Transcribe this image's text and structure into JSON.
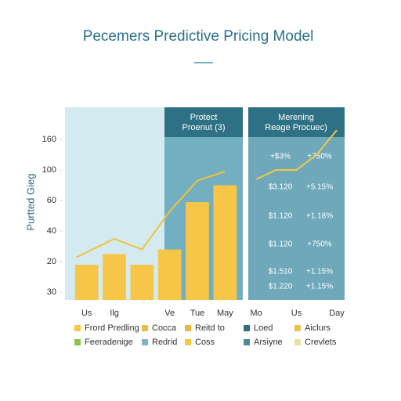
{
  "title": "Pecemers Predictive Pricing Model",
  "chart_data": [
    {
      "type": "bar",
      "panel_title": [
        "Protect",
        "Proenut (3)"
      ],
      "y_label": "Purtted Gieg",
      "categories": [
        "Us",
        "Ilg",
        null,
        "Ve",
        "Tue",
        "May"
      ],
      "series": [
        {
          "type": "bar",
          "color": "#f7c548",
          "values": [
            18,
            25,
            18,
            28,
            59,
            70
          ]
        },
        {
          "type": "line",
          "color": "#f2c13a",
          "values": [
            23,
            35,
            28,
            53,
            73,
            79
          ]
        }
      ],
      "ylim": [
        -5,
        121
      ],
      "yticks": [
        {
          "value": 100,
          "label": "160"
        },
        {
          "value": 80,
          "label": "100"
        },
        60,
        40,
        20,
        {
          "value": 0,
          "label": "30"
        }
      ],
      "legend": [
        {
          "name": "Frord Predling",
          "color": "#f5c842"
        },
        {
          "name": "Cocca",
          "color": "#f2b84b"
        },
        {
          "name": "Reitd to",
          "color": "#f0b640"
        },
        {
          "name": "Loed",
          "color": "#2e6e80"
        },
        {
          "name": "Aiclurs",
          "color": "#e8c44a"
        },
        {
          "name": "Feeradenige",
          "color": "#8bc34a"
        },
        {
          "name": "Redrid",
          "color": "#7fb3c5"
        },
        {
          "name": "Coss",
          "color": "#f5c842"
        },
        {
          "name": "Arsiyne",
          "color": "#4f8a9a"
        },
        {
          "name": "Crevlets",
          "color": "#e8e0a0"
        }
      ]
    },
    {
      "type": "line",
      "panel_title": [
        "Merening",
        "Reage Procuec)"
      ],
      "categories": [
        "Mo",
        null,
        "Us",
        null,
        "Day"
      ],
      "series": [
        {
          "color": "#f5c842",
          "values": [
            74,
            80,
            80,
            90,
            106
          ]
        }
      ],
      "ylim": [
        -5,
        121
      ],
      "table": [
        [
          "+$3%",
          "+750%"
        ],
        [
          "$3.120",
          "+5.15%"
        ],
        [
          "$1.120",
          "+1.18%"
        ],
        [
          "$1.120",
          "+750%"
        ],
        [
          "$1.510",
          "+1.15%"
        ],
        [
          "$1.220",
          "+1.15%"
        ]
      ]
    }
  ]
}
